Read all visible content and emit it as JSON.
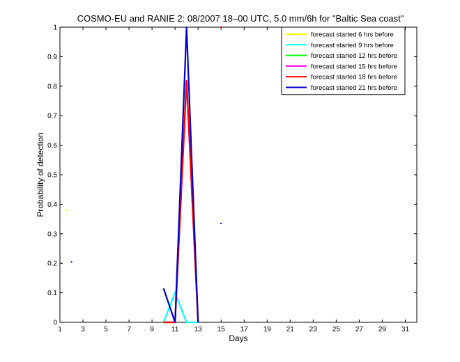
{
  "chart_data": {
    "type": "line",
    "title": "COSMO-EU and RANIE 2: 08/2007 18–00 UTC, 5.0 mm/6h for \"Baltic Sea coast\"",
    "xlabel": "Days",
    "ylabel": "Probability of detection",
    "xlim": [
      1,
      32
    ],
    "ylim": [
      0,
      1
    ],
    "xticks": [
      1,
      3,
      5,
      7,
      9,
      11,
      13,
      15,
      17,
      19,
      21,
      23,
      25,
      27,
      29,
      31
    ],
    "yticks": [
      0,
      0.1,
      0.2,
      0.3,
      0.4,
      0.5,
      0.6,
      0.7,
      0.8,
      0.9,
      1
    ],
    "grid": false,
    "legend_position": "top-right",
    "series": [
      {
        "name": "forecast started 6 hrs before",
        "color": "#ffff00",
        "x": [
          10,
          11,
          12,
          13
        ],
        "y": [
          0,
          0,
          0.82,
          0
        ],
        "dots": [
          [
            1.6,
            0.38
          ]
        ]
      },
      {
        "name": "forecast started 9 hrs before",
        "color": "#00ffff",
        "x": [
          10,
          11,
          12,
          13
        ],
        "y": [
          0,
          0.1,
          0,
          0
        ],
        "dots": []
      },
      {
        "name": "forecast started 12 hrs before",
        "color": "#00ff00",
        "x": [
          10,
          11,
          12,
          13
        ],
        "y": [
          0,
          0,
          0.82,
          0
        ],
        "dots": []
      },
      {
        "name": "forecast started 15 hrs before",
        "color": "#ff00ff",
        "x": [
          10,
          11,
          12,
          13
        ],
        "y": [
          0,
          0,
          0.82,
          0
        ],
        "dots": []
      },
      {
        "name": "forecast started 18 hrs before",
        "color": "#ff0000",
        "x": [
          10,
          11,
          12,
          13
        ],
        "y": [
          0,
          0,
          0.82,
          0
        ],
        "dots": [
          [
            15,
            1.0
          ]
        ]
      },
      {
        "name": "forecast started 21 hrs before",
        "color": "#0000cc",
        "x": [
          10,
          11,
          12,
          13
        ],
        "y": [
          0.115,
          0,
          1,
          0
        ],
        "dots": [
          [
            2,
            0.205
          ],
          [
            15,
            0.335
          ]
        ]
      }
    ]
  }
}
